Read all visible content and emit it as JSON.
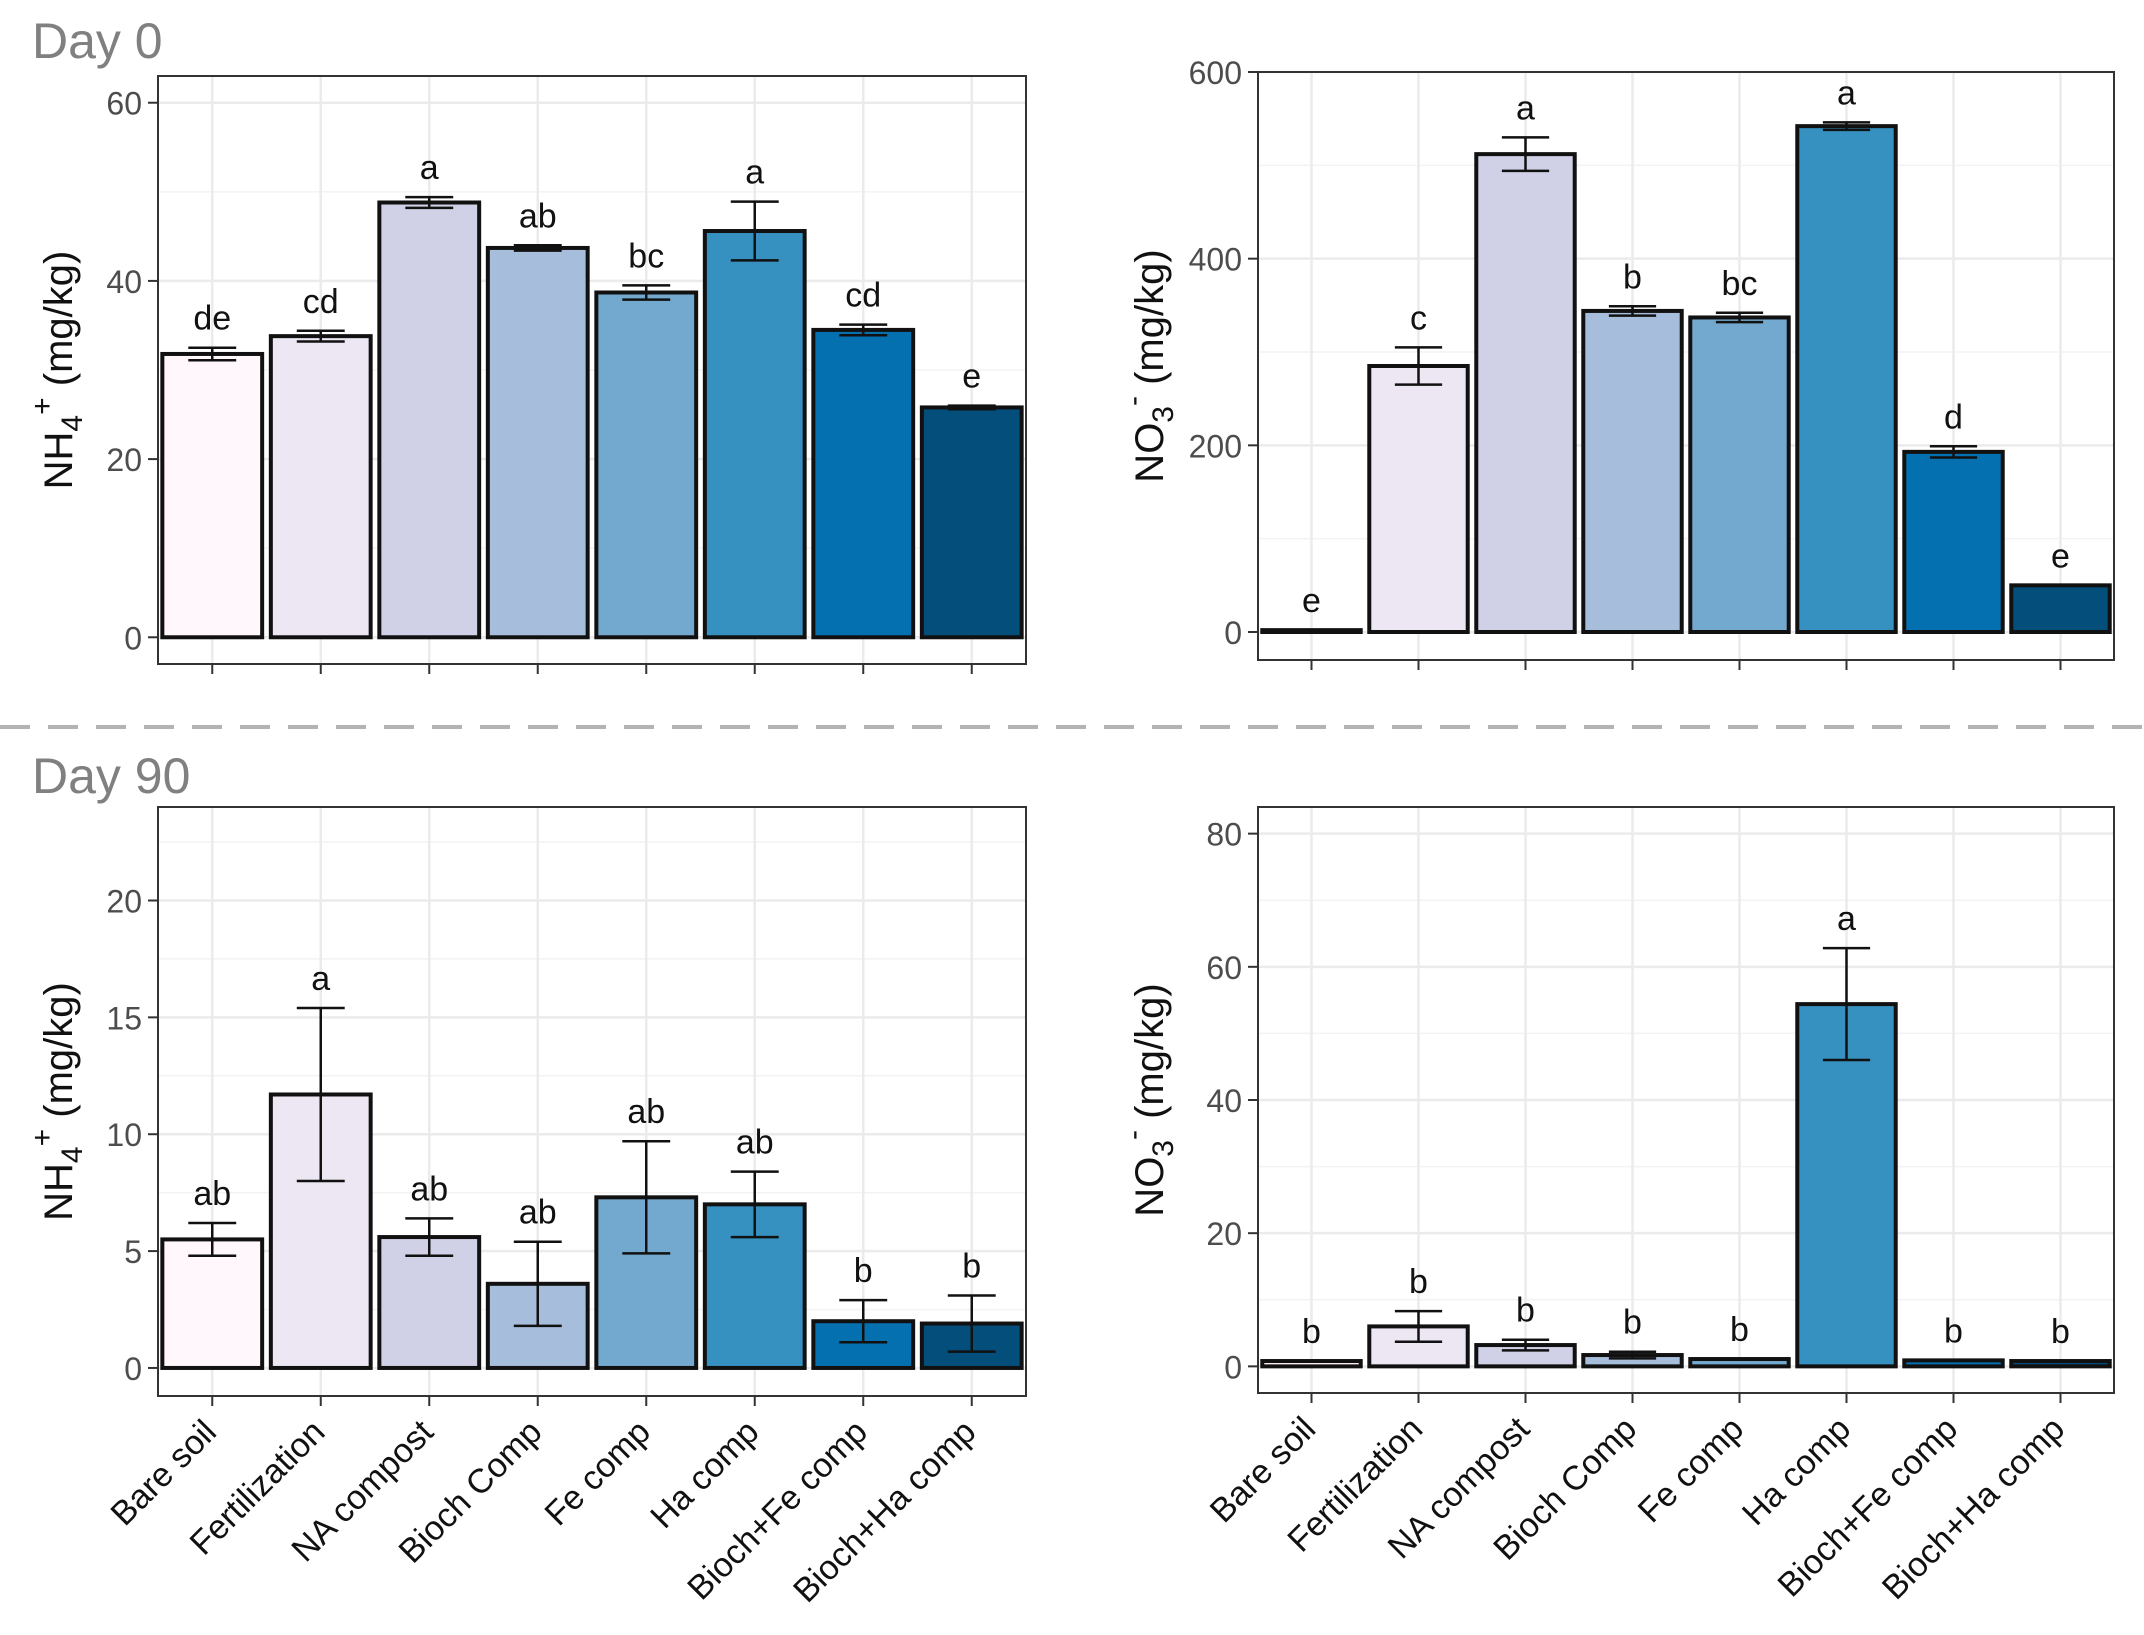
{
  "figure": {
    "day_labels": [
      "Day 0",
      "Day 90"
    ],
    "categories": [
      "Bare soil",
      "Fertilization",
      "NA compost",
      "Bioch Comp",
      "Fe comp",
      "Ha comp",
      "Bioch+Fe comp",
      "Bioch+Ha comp"
    ],
    "bar_colors": [
      "#fff7fb",
      "#ece7f2",
      "#d0d1e6",
      "#a6bddb",
      "#74a9cf",
      "#3690c0",
      "#0570b0",
      "#034e7b"
    ],
    "colors": {
      "divider": "#b3b3b3",
      "day_label": "#808080",
      "grid": "#ebebeb",
      "axis_text": "#4d4d4d",
      "frame": "#333333"
    }
  },
  "chart_data": [
    {
      "id": "d0_nh4",
      "panel": "Day 0",
      "type": "bar",
      "ylabel_main": "NH",
      "ylabel_sub": "4",
      "ylabel_sup": "+",
      "ylabel_rest": " (mg/kg)",
      "ylim": [
        -3,
        63
      ],
      "yticks": [
        0,
        20,
        40,
        60
      ],
      "values": [
        31.8,
        33.8,
        48.8,
        43.7,
        38.7,
        45.6,
        34.5,
        25.8
      ],
      "errors": [
        0.7,
        0.6,
        0.6,
        0.3,
        0.8,
        3.3,
        0.6,
        0.2
      ],
      "letters": [
        "de",
        "cd",
        "a",
        "ab",
        "bc",
        "a",
        "cd",
        "e"
      ],
      "show_xlabels": false
    },
    {
      "id": "d0_no3",
      "panel": "Day 0",
      "type": "bar",
      "ylabel_main": "NO",
      "ylabel_sub": "3",
      "ylabel_sup": "-",
      "ylabel_rest": " (mg/kg)",
      "ylim": [
        -30,
        600
      ],
      "yticks": [
        0,
        200,
        400,
        600
      ],
      "values": [
        2,
        285,
        512,
        344,
        337,
        542,
        193,
        50
      ],
      "errors": [
        0,
        20,
        18,
        5,
        5,
        4,
        6,
        0
      ],
      "letters": [
        "e",
        "c",
        "a",
        "b",
        "bc",
        "a",
        "d",
        "e"
      ],
      "show_xlabels": false
    },
    {
      "id": "d90_nh4",
      "panel": "Day 90",
      "type": "bar",
      "ylabel_main": "NH",
      "ylabel_sub": "4",
      "ylabel_sup": "+",
      "ylabel_rest": " (mg/kg)",
      "ylim": [
        -1.2,
        24
      ],
      "yticks": [
        0,
        5,
        10,
        15,
        20
      ],
      "values": [
        5.5,
        11.7,
        5.6,
        3.6,
        7.3,
        7.0,
        2.0,
        1.9
      ],
      "errors": [
        0.7,
        3.7,
        0.8,
        1.8,
        2.4,
        1.4,
        0.9,
        1.2
      ],
      "letters": [
        "ab",
        "a",
        "ab",
        "ab",
        "ab",
        "ab",
        "b",
        "b"
      ],
      "show_xlabels": true
    },
    {
      "id": "d90_no3",
      "panel": "Day 90",
      "type": "bar",
      "ylabel_main": "NO",
      "ylabel_sub": "3",
      "ylabel_sup": "-",
      "ylabel_rest": " (mg/kg)",
      "ylim": [
        -4,
        84
      ],
      "yticks": [
        0,
        20,
        40,
        60,
        80
      ],
      "values": [
        0.8,
        6.0,
        3.2,
        1.7,
        1.1,
        54.4,
        0.9,
        0.8
      ],
      "errors": [
        0,
        2.3,
        0.8,
        0.5,
        0,
        8.4,
        0,
        0
      ],
      "letters": [
        "b",
        "b",
        "b",
        "b",
        "b",
        "a",
        "b",
        "b"
      ],
      "show_xlabels": true
    }
  ]
}
